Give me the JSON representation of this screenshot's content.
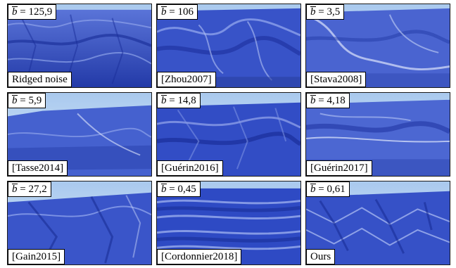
{
  "figure": {
    "metric_symbol": "b",
    "panels": [
      {
        "b_value": "125,9",
        "method": "Ridged noise",
        "surface": "rough"
      },
      {
        "b_value": "106",
        "method": "[Zhou2007]",
        "surface": "ridged"
      },
      {
        "b_value": "3,5",
        "method": "[Stava2008]",
        "surface": "eroded"
      },
      {
        "b_value": "5,9",
        "method": "[Tasse2014]",
        "surface": "plateau"
      },
      {
        "b_value": "14,8",
        "method": "[Guérin2016]",
        "surface": "ridged"
      },
      {
        "b_value": "4,18",
        "method": "[Guérin2017]",
        "surface": "eroded"
      },
      {
        "b_value": "27,2",
        "method": "[Gain2015]",
        "surface": "rough"
      },
      {
        "b_value": "0,45",
        "method": "[Cordonnier2018]",
        "surface": "banded"
      },
      {
        "b_value": "0,61",
        "method": "Ours",
        "surface": "lattice"
      }
    ],
    "colors": {
      "terrain_dark": "#1f33a8",
      "terrain_mid": "#3f5ccf",
      "terrain_light": "#8fa5ea",
      "sky": "#b8d3f2"
    }
  }
}
